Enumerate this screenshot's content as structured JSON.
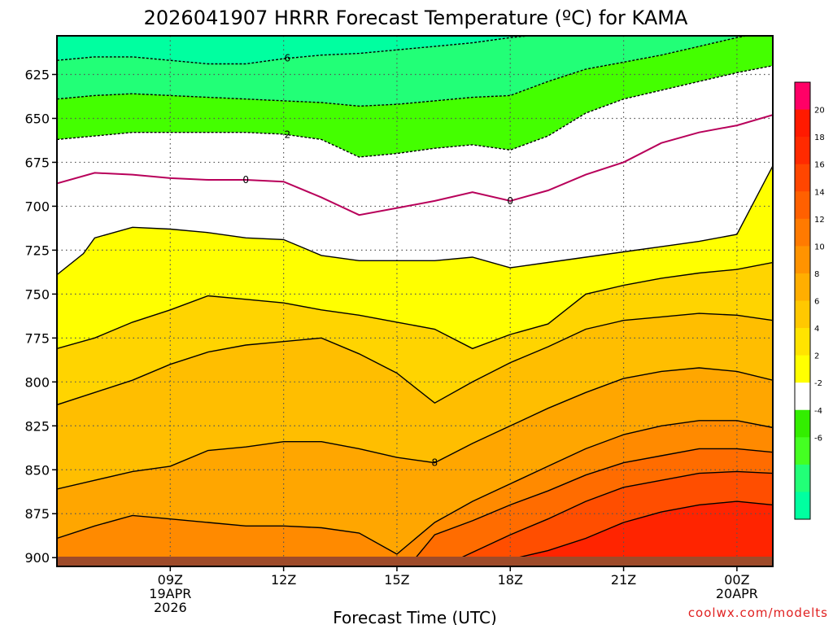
{
  "title": "2026041907 HRRR Forecast Temperature (ºC) for KAMA",
  "xlabel": "Forecast Time (UTC)",
  "credit": "coolwx.com/modelts",
  "chart_data": {
    "type": "filled-contour",
    "yaxis": {
      "label": "",
      "inverted": true,
      "range": [
        603,
        905
      ],
      "ticks": [
        625,
        650,
        675,
        700,
        725,
        750,
        775,
        800,
        825,
        850,
        875,
        900
      ]
    },
    "xaxis": {
      "range_hours": [
        6.0,
        24.95
      ],
      "ticks": [
        {
          "hour": 9,
          "lines": [
            "09Z",
            "19APR",
            "2026"
          ]
        },
        {
          "hour": 12,
          "lines": [
            "12Z"
          ]
        },
        {
          "hour": 15,
          "lines": [
            "15Z"
          ]
        },
        {
          "hour": 18,
          "lines": [
            "18Z"
          ]
        },
        {
          "hour": 21,
          "lines": [
            "21Z"
          ]
        },
        {
          "hour": 24,
          "lines": [
            "00Z",
            "20APR"
          ]
        }
      ]
    },
    "grid": "dotted",
    "colorbar": {
      "position": "right",
      "labels": [
        "20",
        "18",
        "16",
        "14",
        "12",
        "10",
        "8",
        "6",
        "4",
        "2",
        "-2",
        "-4",
        "-6"
      ],
      "colors": [
        "#ff0066",
        "#ff1a00",
        "#ff2a00",
        "#ff4600",
        "#ff6000",
        "#ff7a00",
        "#ff9300",
        "#ffae00",
        "#ffc800",
        "#ffe300",
        "#ffff00",
        "#ffffff",
        "#33ee00",
        "#44ff22",
        "#22ff77",
        "#00ffa0"
      ]
    },
    "contours": [
      {
        "level": 6,
        "style": "dashed",
        "label": "6",
        "points": [
          [
            6.0,
            617
          ],
          [
            7,
            615
          ],
          [
            8,
            615
          ],
          [
            9,
            617
          ],
          [
            10,
            619
          ],
          [
            11,
            619
          ],
          [
            12,
            616
          ],
          [
            13,
            614
          ],
          [
            14,
            613
          ],
          [
            15,
            611
          ],
          [
            16,
            609
          ],
          [
            17,
            607
          ],
          [
            18,
            604
          ],
          [
            19,
            602
          ],
          [
            19.5,
            600
          ]
        ]
      },
      {
        "level": 4,
        "style": "dashed",
        "points": [
          [
            6.0,
            639
          ],
          [
            7,
            637
          ],
          [
            8,
            636
          ],
          [
            9,
            637
          ],
          [
            10,
            638
          ],
          [
            11,
            639
          ],
          [
            12,
            640
          ],
          [
            13,
            641
          ],
          [
            14,
            643
          ],
          [
            15,
            642
          ],
          [
            16,
            640
          ],
          [
            17,
            638
          ],
          [
            18,
            637
          ],
          [
            19,
            629
          ],
          [
            20,
            622
          ],
          [
            21,
            618
          ],
          [
            22,
            614
          ],
          [
            23,
            609
          ],
          [
            24,
            604
          ],
          [
            25,
            600
          ]
        ]
      },
      {
        "level": 2,
        "style": "dashed",
        "label": "2",
        "points": [
          [
            6.0,
            662
          ],
          [
            7,
            660
          ],
          [
            8,
            658
          ],
          [
            9,
            658
          ],
          [
            10,
            658
          ],
          [
            11,
            658
          ],
          [
            12,
            659
          ],
          [
            13,
            662
          ],
          [
            14,
            672
          ],
          [
            15,
            670
          ],
          [
            16,
            667
          ],
          [
            17,
            665
          ],
          [
            18,
            668
          ],
          [
            19,
            660
          ],
          [
            20,
            647
          ],
          [
            21,
            639
          ],
          [
            22,
            634
          ],
          [
            23,
            629
          ],
          [
            24,
            624
          ],
          [
            24.95,
            620
          ]
        ]
      },
      {
        "level": 0,
        "style": "solid",
        "label": "0",
        "color": "#b8005a",
        "points": [
          [
            6.0,
            687
          ],
          [
            7,
            681
          ],
          [
            8,
            682
          ],
          [
            9,
            684
          ],
          [
            10,
            685
          ],
          [
            11,
            685
          ],
          [
            12,
            686
          ],
          [
            13,
            695
          ],
          [
            14,
            705
          ],
          [
            15,
            701
          ],
          [
            16,
            697
          ],
          [
            17,
            692
          ],
          [
            18,
            697
          ],
          [
            19,
            691
          ],
          [
            20,
            682
          ],
          [
            21,
            675
          ],
          [
            22,
            664
          ],
          [
            23,
            658
          ],
          [
            24,
            654
          ],
          [
            24.95,
            648
          ]
        ]
      },
      {
        "level": 2,
        "style": "solid",
        "points": [
          [
            6.0,
            739
          ],
          [
            6.7,
            727
          ],
          [
            7,
            718
          ],
          [
            8,
            712
          ],
          [
            9,
            713
          ],
          [
            10,
            715
          ],
          [
            11,
            718
          ],
          [
            12,
            719
          ],
          [
            13,
            728
          ],
          [
            14,
            731
          ],
          [
            15,
            731
          ],
          [
            16,
            731
          ],
          [
            17,
            729
          ],
          [
            18,
            735
          ],
          [
            19,
            732
          ],
          [
            20,
            729
          ],
          [
            21,
            726
          ],
          [
            22,
            723
          ],
          [
            23,
            720
          ],
          [
            24,
            716
          ],
          [
            24.95,
            677
          ]
        ]
      },
      {
        "level": 4,
        "style": "solid",
        "points": [
          [
            6.0,
            781
          ],
          [
            7,
            775
          ],
          [
            8,
            766
          ],
          [
            9,
            759
          ],
          [
            10,
            751
          ],
          [
            11,
            753
          ],
          [
            12,
            755
          ],
          [
            13,
            759
          ],
          [
            14,
            762
          ],
          [
            15,
            766
          ],
          [
            16,
            770
          ],
          [
            17,
            781
          ],
          [
            18,
            773
          ],
          [
            19,
            767
          ],
          [
            20,
            750
          ],
          [
            21,
            745
          ],
          [
            22,
            741
          ],
          [
            23,
            738
          ],
          [
            24,
            736
          ],
          [
            24.95,
            732
          ]
        ]
      },
      {
        "level": 6,
        "style": "solid",
        "points": [
          [
            6.0,
            813
          ],
          [
            7,
            806
          ],
          [
            8,
            799
          ],
          [
            9,
            790
          ],
          [
            10,
            783
          ],
          [
            11,
            779
          ],
          [
            12,
            777
          ],
          [
            13,
            775
          ],
          [
            14,
            784
          ],
          [
            15,
            795
          ],
          [
            16,
            812
          ],
          [
            17,
            800
          ],
          [
            18,
            789
          ],
          [
            19,
            780
          ],
          [
            20,
            770
          ],
          [
            21,
            765
          ],
          [
            22,
            763
          ],
          [
            23,
            761
          ],
          [
            24,
            762
          ],
          [
            24.95,
            765
          ]
        ]
      },
      {
        "level": 8,
        "style": "solid",
        "label": "8",
        "points": [
          [
            6.0,
            861
          ],
          [
            7,
            856
          ],
          [
            8,
            851
          ],
          [
            9,
            848
          ],
          [
            10,
            839
          ],
          [
            11,
            837
          ],
          [
            12,
            834
          ],
          [
            13,
            834
          ],
          [
            14,
            838
          ],
          [
            15,
            843
          ],
          [
            16,
            846
          ],
          [
            17,
            835
          ],
          [
            18,
            825
          ],
          [
            19,
            815
          ],
          [
            20,
            806
          ],
          [
            21,
            798
          ],
          [
            22,
            794
          ],
          [
            23,
            792
          ],
          [
            24,
            794
          ],
          [
            24.95,
            799
          ]
        ]
      },
      {
        "level": 10,
        "style": "solid",
        "points": [
          [
            6.0,
            889
          ],
          [
            7,
            882
          ],
          [
            8,
            876
          ],
          [
            9,
            878
          ],
          [
            10,
            880
          ],
          [
            11,
            882
          ],
          [
            12,
            882
          ],
          [
            13,
            883
          ],
          [
            14,
            886
          ],
          [
            15,
            898
          ],
          [
            16,
            880
          ],
          [
            17,
            868
          ],
          [
            18,
            858
          ],
          [
            19,
            848
          ],
          [
            20,
            838
          ],
          [
            21,
            830
          ],
          [
            22,
            825
          ],
          [
            23,
            822
          ],
          [
            24,
            822
          ],
          [
            24.95,
            826
          ]
        ]
      },
      {
        "level": 12,
        "style": "solid",
        "points": [
          [
            15.5,
            900
          ],
          [
            16,
            887
          ],
          [
            17,
            879
          ],
          [
            18,
            870
          ],
          [
            19,
            862
          ],
          [
            20,
            853
          ],
          [
            21,
            846
          ],
          [
            22,
            842
          ],
          [
            23,
            838
          ],
          [
            24,
            838
          ],
          [
            24.95,
            840
          ]
        ]
      },
      {
        "level": 14,
        "style": "solid",
        "points": [
          [
            16.7,
            900
          ],
          [
            17,
            897
          ],
          [
            18,
            887
          ],
          [
            19,
            878
          ],
          [
            20,
            868
          ],
          [
            21,
            860
          ],
          [
            22,
            856
          ],
          [
            23,
            852
          ],
          [
            24,
            851
          ],
          [
            24.95,
            852
          ]
        ]
      },
      {
        "level": 16,
        "style": "solid",
        "points": [
          [
            18.2,
            900
          ],
          [
            19,
            896
          ],
          [
            20,
            889
          ],
          [
            21,
            880
          ],
          [
            22,
            874
          ],
          [
            23,
            870
          ],
          [
            24,
            868
          ],
          [
            24.95,
            870
          ]
        ]
      }
    ]
  }
}
